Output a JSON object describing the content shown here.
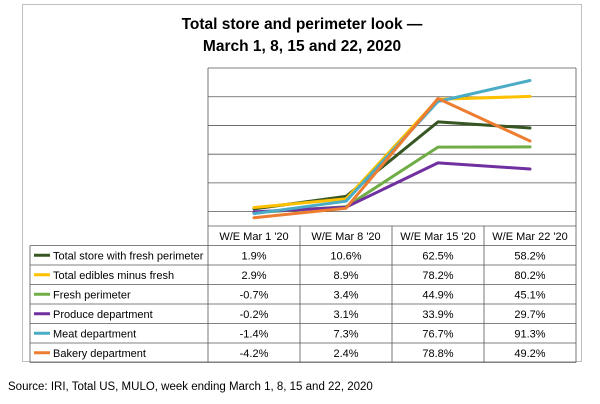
{
  "chart_data": {
    "type": "line",
    "title": "Total store and perimeter look —",
    "subtitle": "March 1, 8, 15 and 22, 2020",
    "categories": [
      "W/E Mar 1 '20",
      "W/E Mar 8 '20",
      "W/E Mar 15 '20",
      "W/E Mar 22 '20"
    ],
    "series": [
      {
        "name": "Total store with fresh perimeter",
        "color": "#375623",
        "values": [
          1.9,
          10.6,
          62.5,
          58.2
        ],
        "labels": [
          "1.9%",
          "10.6%",
          "62.5%",
          "58.2%"
        ]
      },
      {
        "name": "Total edibles minus fresh",
        "color": "#ffc000",
        "values": [
          2.9,
          8.9,
          78.2,
          80.2
        ],
        "labels": [
          "2.9%",
          "8.9%",
          "78.2%",
          "80.2%"
        ]
      },
      {
        "name": "Fresh perimeter",
        "color": "#70ad47",
        "values": [
          -0.7,
          3.4,
          44.9,
          45.1
        ],
        "labels": [
          "-0.7%",
          "3.4%",
          "44.9%",
          "45.1%"
        ]
      },
      {
        "name": "Produce department",
        "color": "#7030a0",
        "values": [
          -0.2,
          3.1,
          33.9,
          29.7
        ],
        "labels": [
          "-0.2%",
          "3.1%",
          "33.9%",
          "29.7%"
        ]
      },
      {
        "name": "Meat department",
        "color": "#4bacc6",
        "values": [
          -1.4,
          7.3,
          76.7,
          91.3
        ],
        "labels": [
          "-1.4%",
          "7.3%",
          "76.7%",
          "91.3%"
        ]
      },
      {
        "name": "Bakery department",
        "color": "#ed7d31",
        "values": [
          -4.2,
          2.4,
          78.8,
          49.2
        ],
        "labels": [
          "-4.2%",
          "2.4%",
          "78.8%",
          "49.2%"
        ]
      }
    ],
    "ylim": [
      -10,
      100
    ],
    "grid": true,
    "legend": "data table"
  },
  "source": "Source: IRI, Total US, MULO, week ending March 1, 8, 15 and 22, 2020"
}
